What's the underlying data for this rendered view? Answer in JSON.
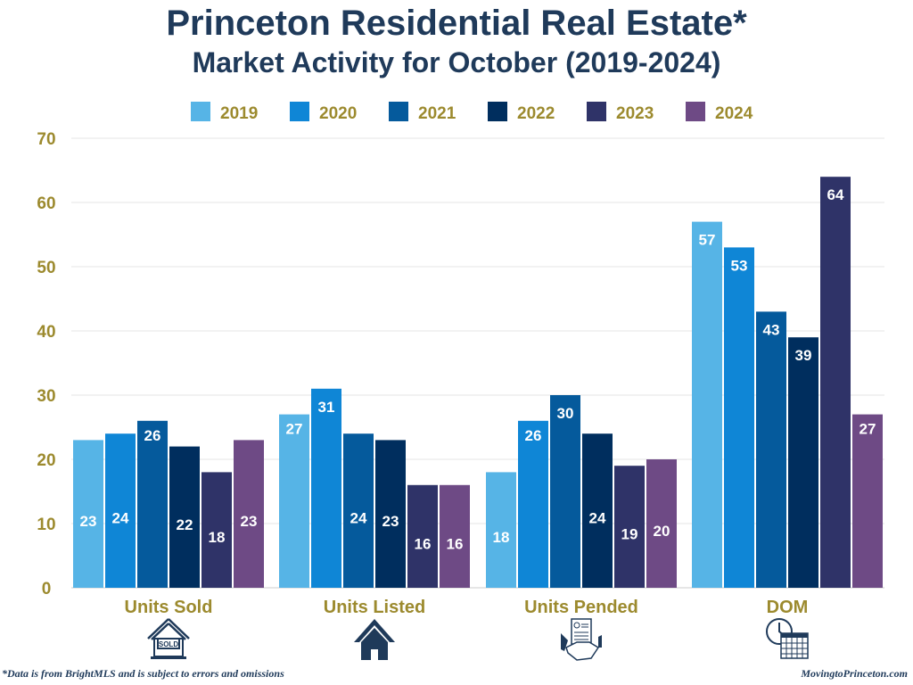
{
  "chart_data": {
    "type": "bar",
    "title": "Princeton Residential Real Estate*",
    "subtitle": "Market Activity for October (2019-2024)",
    "categories": [
      "Units Sold",
      "Units Listed",
      "Units Pended",
      "DOM"
    ],
    "category_icons": [
      "sold-sign-house-icon",
      "house-icon",
      "contract-handshake-icon",
      "clock-calendar-icon"
    ],
    "series": [
      {
        "name": "2019",
        "color": "#56b4e6",
        "values": [
          23,
          27,
          18,
          57
        ]
      },
      {
        "name": "2020",
        "color": "#0f86d6",
        "values": [
          24,
          31,
          26,
          53
        ]
      },
      {
        "name": "2021",
        "color": "#055a9c",
        "values": [
          26,
          24,
          30,
          43
        ]
      },
      {
        "name": "2022",
        "color": "#002e5e",
        "values": [
          22,
          23,
          24,
          39
        ]
      },
      {
        "name": "2023",
        "color": "#2f3368",
        "values": [
          18,
          16,
          19,
          64
        ]
      },
      {
        "name": "2024",
        "color": "#6e4a85",
        "values": [
          23,
          16,
          20,
          27
        ]
      }
    ],
    "ylim": [
      0,
      70
    ],
    "yticks": [
      0,
      10,
      20,
      30,
      40,
      50,
      60,
      70
    ],
    "grid": true,
    "legend": "top",
    "label_color": "#9c8a2e",
    "title_color": "#1f3a5a"
  },
  "footer": {
    "disclaimer": "*Data is from BrightMLS and is subject to errors and omissions",
    "site": "MovingtoPrinceton.com"
  }
}
